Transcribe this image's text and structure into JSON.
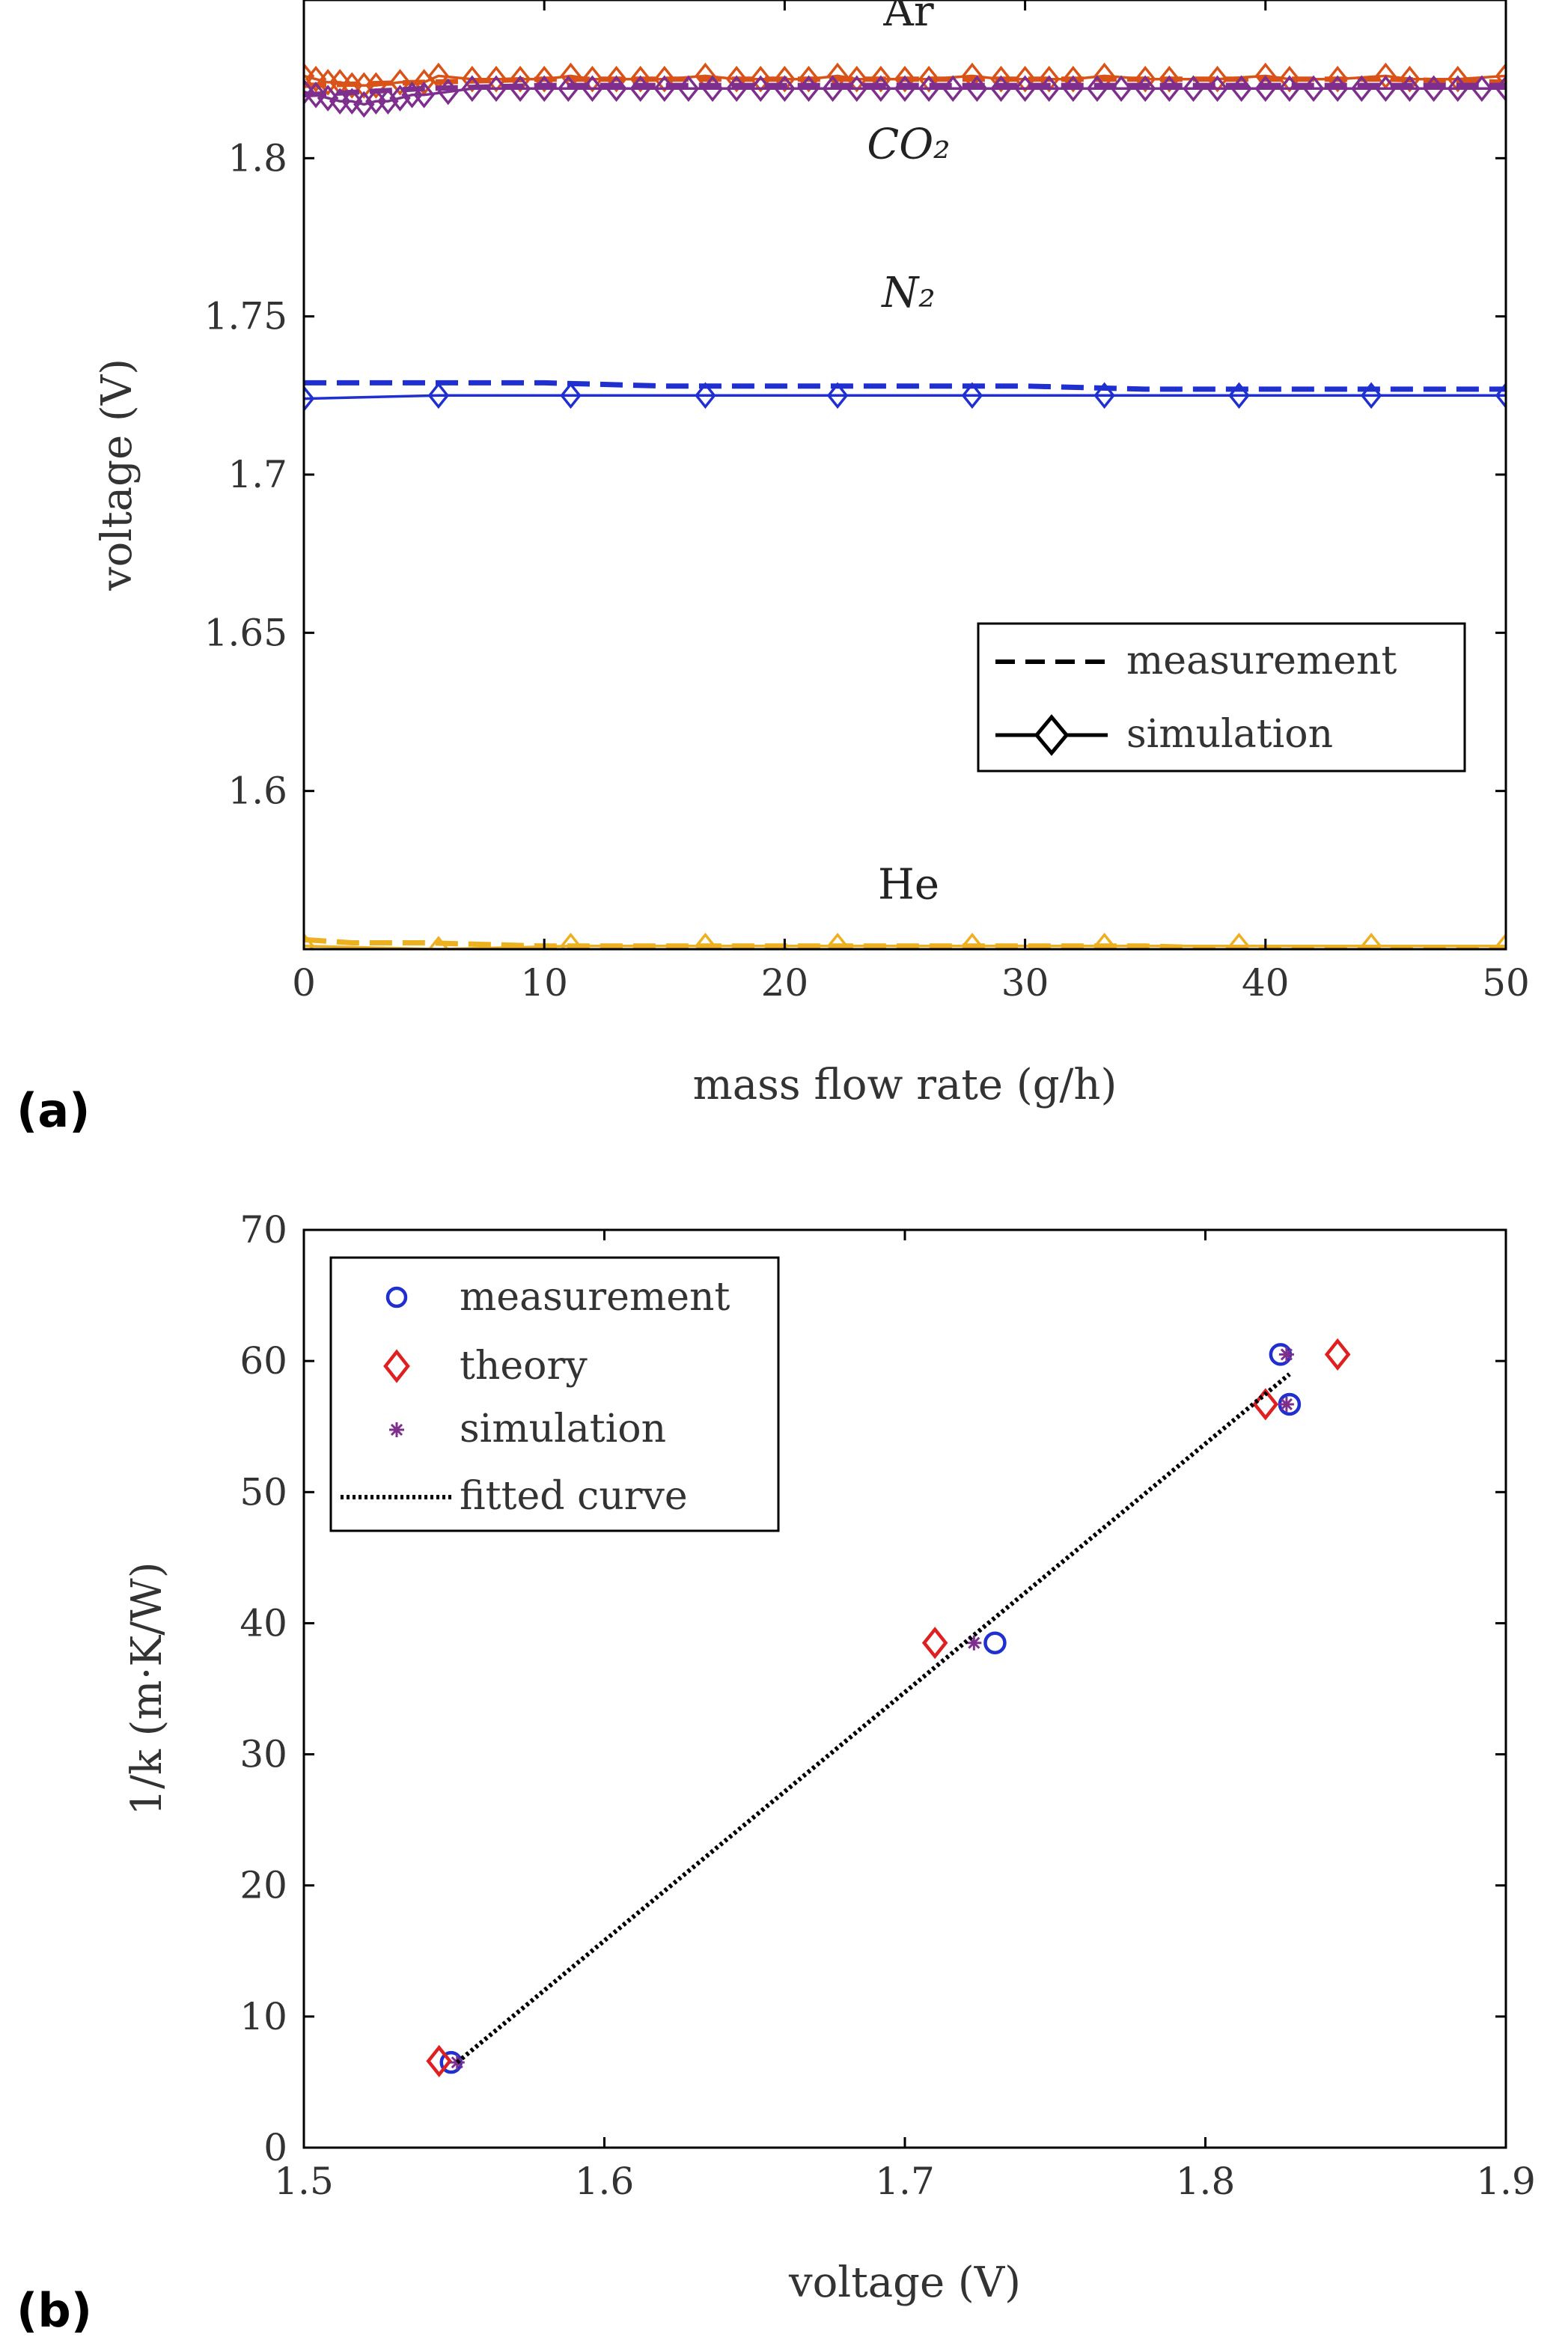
{
  "panel_labels": [
    "(a)",
    "(b)"
  ],
  "chart_data": [
    {
      "type": "line",
      "panel": "(a)",
      "xlabel": "mass flow rate (g/h)",
      "ylabel": "voltage (V)",
      "xlim": [
        0,
        50
      ],
      "ylim": [
        1.55,
        1.85
      ],
      "xticks": [
        "0",
        "10",
        "20",
        "30",
        "40",
        "50"
      ],
      "yticks": [
        "1.6",
        "1.65",
        "1.7",
        "1.75",
        "1.8"
      ],
      "grid": false,
      "annotations": [
        {
          "text": "Ar",
          "x": 25,
          "y": 1.842
        },
        {
          "text": "CO₂",
          "x": 25,
          "y": 1.8
        },
        {
          "text": "N₂",
          "x": 25,
          "y": 1.753
        },
        {
          "text": "He",
          "x": 25,
          "y": 1.566
        }
      ],
      "legend": {
        "placement": "lower-right",
        "entries": [
          {
            "label": "measurement",
            "style": "dashed"
          },
          {
            "label": "simulation",
            "style": "solid-diamond"
          }
        ]
      },
      "series": [
        {
          "gas": "Ar",
          "kind": "measurement",
          "color": "#d95319",
          "x": [
            0,
            5,
            10,
            15,
            20,
            25,
            30,
            35,
            40,
            45,
            50
          ],
          "y": [
            1.823,
            1.824,
            1.825,
            1.825,
            1.825,
            1.825,
            1.825,
            1.825,
            1.825,
            1.825,
            1.824
          ]
        },
        {
          "gas": "Ar",
          "kind": "simulation",
          "color": "#d95319",
          "x": [
            0,
            0.5,
            1,
            1.5,
            2,
            2.5,
            3,
            4,
            5,
            5.6,
            7,
            8,
            9,
            10,
            11.1,
            12,
            13,
            14,
            15,
            16.7,
            18,
            19,
            20,
            21,
            22.2,
            23,
            24,
            25,
            26,
            27.8,
            29,
            30,
            31,
            32,
            33.3,
            35,
            36,
            38,
            40,
            41,
            43,
            45,
            46,
            48,
            50
          ],
          "y": [
            1.826,
            1.825,
            1.824,
            1.824,
            1.823,
            1.823,
            1.823,
            1.824,
            1.824,
            1.826,
            1.825,
            1.825,
            1.825,
            1.825,
            1.826,
            1.825,
            1.825,
            1.825,
            1.825,
            1.826,
            1.825,
            1.825,
            1.825,
            1.825,
            1.826,
            1.825,
            1.825,
            1.825,
            1.825,
            1.826,
            1.825,
            1.825,
            1.825,
            1.825,
            1.826,
            1.825,
            1.825,
            1.825,
            1.826,
            1.825,
            1.825,
            1.826,
            1.825,
            1.825,
            1.826
          ]
        },
        {
          "gas": "CO2",
          "kind": "measurement",
          "color": "#7e2f8e",
          "x": [
            0,
            5,
            10,
            15,
            20,
            25,
            30,
            35,
            40,
            45,
            50
          ],
          "y": [
            1.82,
            1.822,
            1.823,
            1.823,
            1.823,
            1.823,
            1.823,
            1.823,
            1.823,
            1.823,
            1.823
          ]
        },
        {
          "gas": "CO2",
          "kind": "simulation",
          "color": "#7e2f8e",
          "x": [
            0,
            0.5,
            1,
            1.5,
            2,
            2.5,
            3,
            3.5,
            4,
            4.5,
            5,
            6,
            7,
            8,
            9,
            10,
            11,
            12,
            13,
            14,
            15,
            16,
            17,
            18,
            19,
            20,
            21,
            22,
            23,
            24,
            25,
            26,
            27,
            28,
            29,
            30,
            31,
            32,
            33,
            34,
            35,
            36,
            37,
            38,
            39,
            40,
            41,
            42,
            43,
            44,
            45,
            46,
            47,
            48,
            49,
            50
          ],
          "y": [
            1.821,
            1.82,
            1.819,
            1.818,
            1.818,
            1.817,
            1.818,
            1.818,
            1.819,
            1.82,
            1.82,
            1.821,
            1.822,
            1.822,
            1.822,
            1.822,
            1.822,
            1.822,
            1.822,
            1.822,
            1.822,
            1.822,
            1.822,
            1.822,
            1.822,
            1.822,
            1.822,
            1.822,
            1.822,
            1.822,
            1.822,
            1.822,
            1.822,
            1.822,
            1.822,
            1.822,
            1.822,
            1.822,
            1.822,
            1.822,
            1.822,
            1.822,
            1.822,
            1.822,
            1.822,
            1.822,
            1.822,
            1.822,
            1.822,
            1.822,
            1.822,
            1.822,
            1.822,
            1.822,
            1.822,
            1.822
          ]
        },
        {
          "gas": "N2",
          "kind": "measurement",
          "color": "#1f2fd0",
          "x": [
            0,
            5,
            10,
            15,
            20,
            25,
            30,
            35,
            40,
            45,
            50
          ],
          "y": [
            1.729,
            1.729,
            1.729,
            1.728,
            1.728,
            1.728,
            1.728,
            1.727,
            1.727,
            1.727,
            1.727
          ]
        },
        {
          "gas": "N2",
          "kind": "simulation",
          "color": "#1f2fd0",
          "x": [
            0,
            5.6,
            11.1,
            16.7,
            22.2,
            27.8,
            33.3,
            38.9,
            44.4,
            50
          ],
          "y": [
            1.724,
            1.725,
            1.725,
            1.725,
            1.725,
            1.725,
            1.725,
            1.725,
            1.725,
            1.725
          ]
        },
        {
          "gas": "He",
          "kind": "measurement",
          "color": "#edb120",
          "x": [
            0,
            2,
            5,
            10,
            15,
            20,
            25,
            30,
            35,
            40,
            45,
            50
          ],
          "y": [
            1.553,
            1.552,
            1.552,
            1.551,
            1.551,
            1.551,
            1.551,
            1.551,
            1.551,
            1.55,
            1.55,
            1.55
          ]
        },
        {
          "gas": "He",
          "kind": "simulation",
          "color": "#edb120",
          "x": [
            0,
            5.6,
            11.1,
            16.7,
            22.2,
            27.8,
            33.3,
            38.9,
            44.4,
            50
          ],
          "y": [
            1.551,
            1.55,
            1.551,
            1.551,
            1.551,
            1.551,
            1.551,
            1.551,
            1.551,
            1.551
          ]
        }
      ]
    },
    {
      "type": "scatter",
      "panel": "(b)",
      "xlabel": "voltage (V)",
      "ylabel": "1/k (m·K/W)",
      "xlim": [
        1.5,
        1.9
      ],
      "ylim": [
        0,
        70
      ],
      "xticks": [
        "1.5",
        "1.6",
        "1.7",
        "1.8",
        "1.9"
      ],
      "yticks": [
        "0",
        "10",
        "20",
        "30",
        "40",
        "50",
        "60",
        "70"
      ],
      "grid": false,
      "legend": {
        "placement": "top-left",
        "entries": [
          {
            "label": "measurement",
            "marker": "circle",
            "color": "#1f2fd0"
          },
          {
            "label": "theory",
            "marker": "diamond",
            "color": "#e02020"
          },
          {
            "label": "simulation",
            "marker": "star",
            "color": "#7e2f8e"
          },
          {
            "label": "fitted curve",
            "marker": "dotted-line",
            "color": "#000000"
          }
        ]
      },
      "series": [
        {
          "name": "measurement",
          "color": "#1f2fd0",
          "x": [
            1.549,
            1.73,
            1.825,
            1.828
          ],
          "y": [
            6.5,
            38.5,
            60.5,
            56.7
          ]
        },
        {
          "name": "theory",
          "color": "#e02020",
          "x": [
            1.545,
            1.71,
            1.82,
            1.844
          ],
          "y": [
            6.6,
            38.5,
            56.7,
            60.5
          ]
        },
        {
          "name": "simulation",
          "color": "#7e2f8e",
          "x": [
            1.551,
            1.723,
            1.827,
            1.827
          ],
          "y": [
            6.5,
            38.5,
            56.7,
            60.5
          ]
        },
        {
          "name": "fitted curve",
          "color": "#000000",
          "x": [
            1.551,
            1.828
          ],
          "y": [
            6.5,
            59.0
          ]
        }
      ]
    }
  ]
}
